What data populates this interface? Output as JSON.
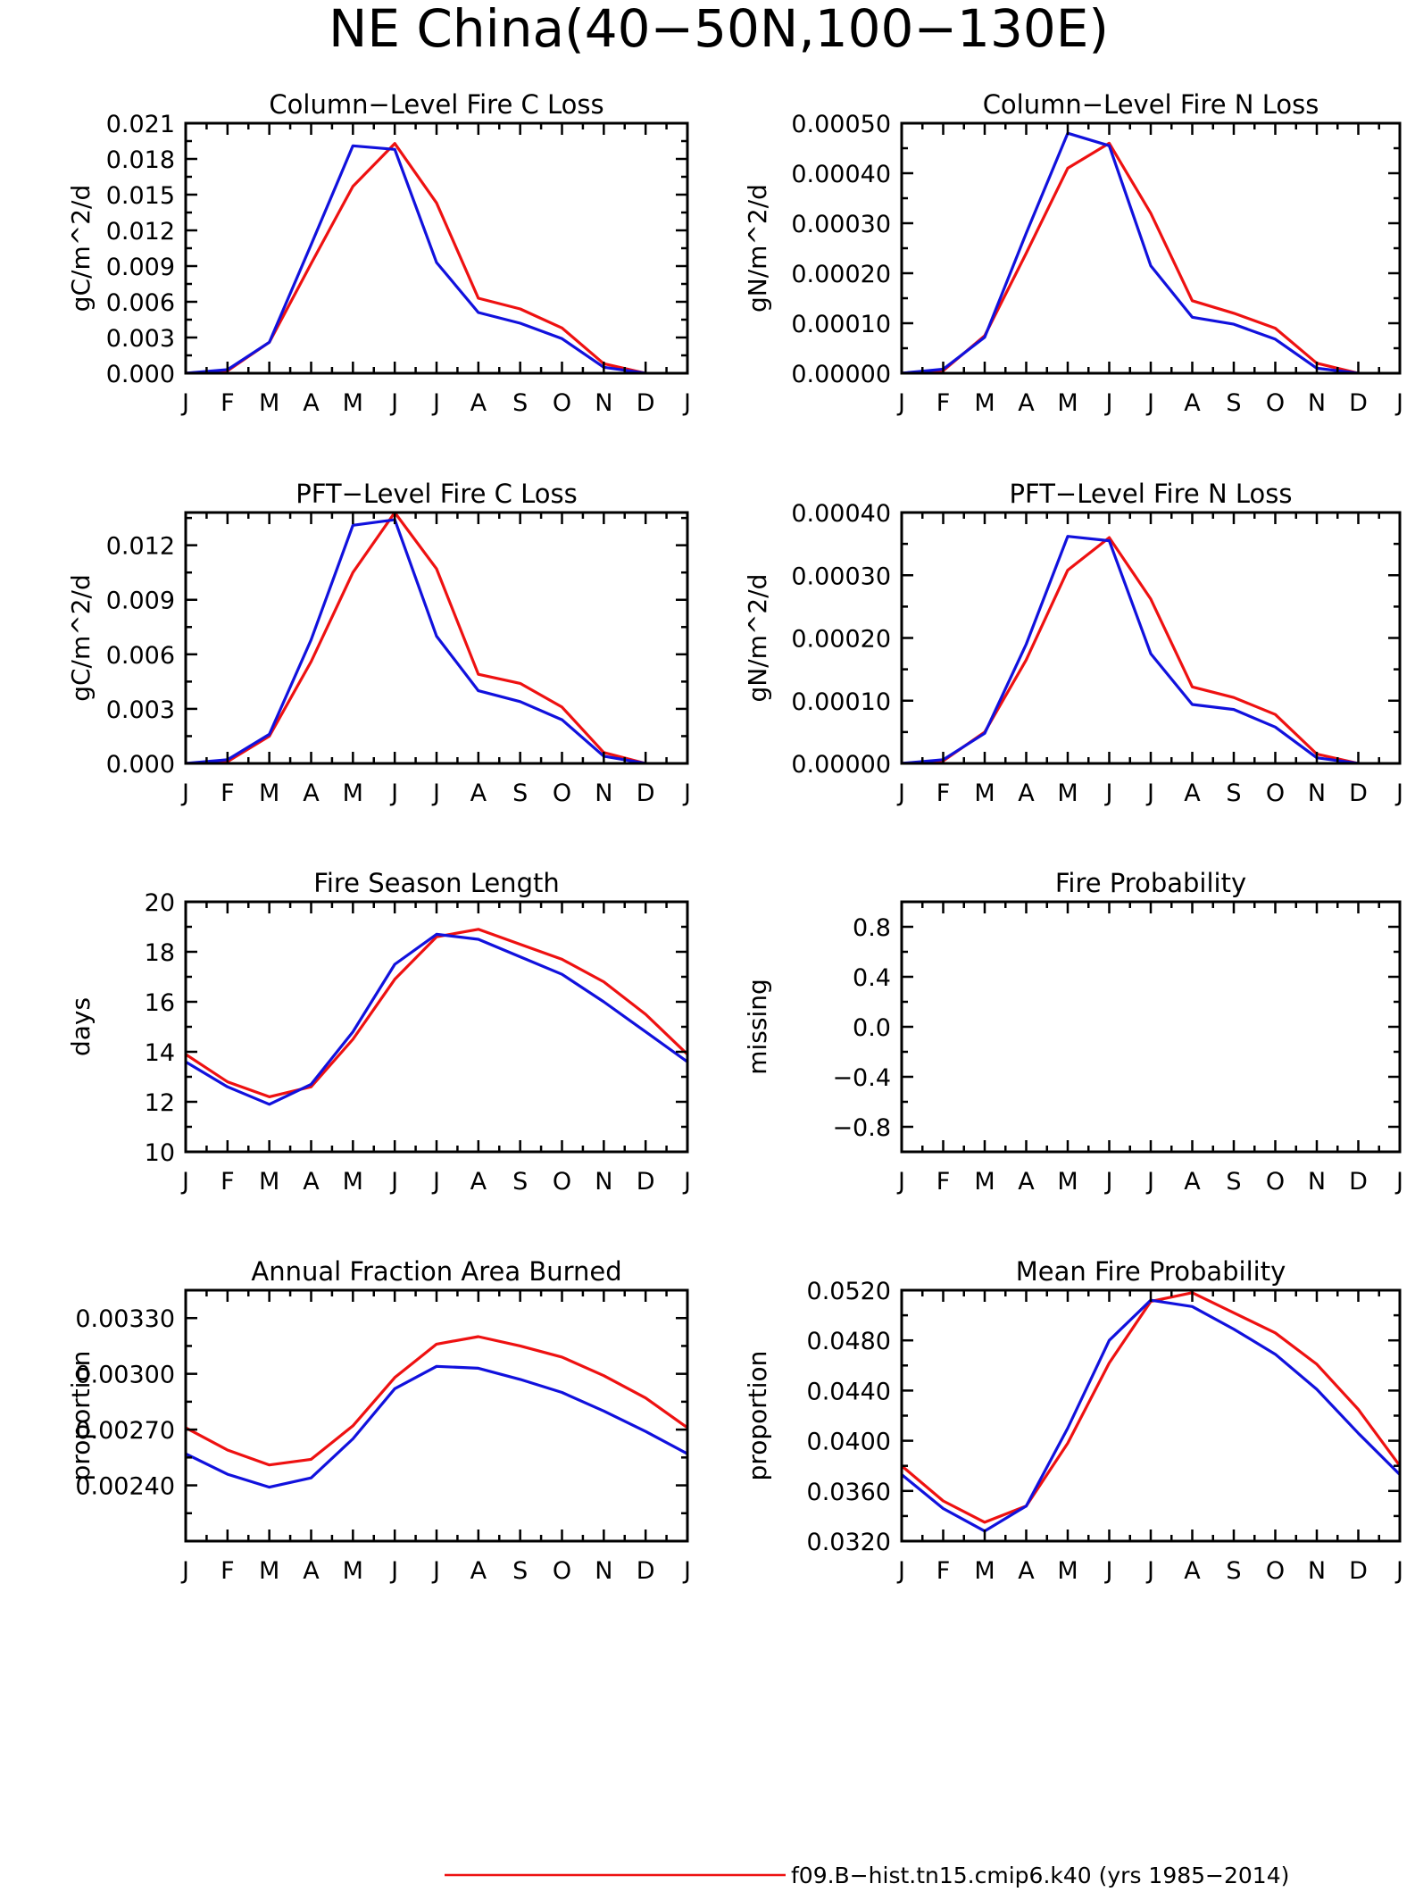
{
  "page": {
    "title": "NE China(40−50N,100−130E)"
  },
  "colors": {
    "series_1": "#ee1111",
    "series_2": "#1111dd",
    "frame": "#000000"
  },
  "legend": {
    "entries": [
      {
        "label": "f09.B−hist.tn15.cmip6.k40 (yrs 1985−2014)",
        "color": "#ee1111"
      }
    ]
  },
  "chart_data": [
    {
      "type": "line",
      "title": "Column−Level Fire C Loss",
      "xlabel": "",
      "ylabel": "gC/m^2/d",
      "categories": [
        "J",
        "F",
        "M",
        "A",
        "M",
        "J",
        "J",
        "A",
        "S",
        "O",
        "N",
        "D",
        "J"
      ],
      "ylim": [
        0,
        0.021
      ],
      "yticks": [
        "0.000",
        "0.003",
        "0.006",
        "0.009",
        "0.012",
        "0.015",
        "0.018",
        "0.021"
      ],
      "ytick_values": [
        0,
        0.003,
        0.006,
        0.009,
        0.012,
        0.015,
        0.018,
        0.021
      ],
      "series": [
        {
          "color": "#ee1111",
          "values": [
            0,
            0.0002,
            0.0026,
            0.0092,
            0.0157,
            0.0193,
            0.0143,
            0.0063,
            0.0054,
            0.0038,
            0.0008,
            0,
            null
          ]
        },
        {
          "color": "#1111dd",
          "values": [
            0,
            0.0003,
            0.0026,
            0.0108,
            0.0191,
            0.0188,
            0.0093,
            0.0051,
            0.0042,
            0.0029,
            0.0005,
            0,
            null
          ]
        }
      ]
    },
    {
      "type": "line",
      "title": "Column−Level Fire N Loss",
      "xlabel": "",
      "ylabel": "gN/m^2/d",
      "categories": [
        "J",
        "F",
        "M",
        "A",
        "M",
        "J",
        "J",
        "A",
        "S",
        "O",
        "N",
        "D",
        "J"
      ],
      "ylim": [
        0,
        0.0005
      ],
      "yticks": [
        "0.00000",
        "0.00010",
        "0.00020",
        "0.00030",
        "0.00040",
        "0.00050"
      ],
      "ytick_values": [
        0,
        0.0001,
        0.0002,
        0.0003,
        0.0004,
        0.0005
      ],
      "series": [
        {
          "color": "#ee1111",
          "values": [
            0,
            5e-06,
            7.5e-05,
            0.00024,
            0.00041,
            0.00046,
            0.00032,
            0.000145,
            0.00012,
            9e-05,
            2e-05,
            0,
            null
          ]
        },
        {
          "color": "#1111dd",
          "values": [
            0,
            8e-06,
            7.2e-05,
            0.00028,
            0.00048,
            0.000455,
            0.000215,
            0.000112,
            9.8e-05,
            6.8e-05,
            1e-05,
            0,
            null
          ]
        }
      ]
    },
    {
      "type": "line",
      "title": "PFT−Level Fire C Loss",
      "xlabel": "",
      "ylabel": "gC/m^2/d",
      "categories": [
        "J",
        "F",
        "M",
        "A",
        "M",
        "J",
        "J",
        "A",
        "S",
        "O",
        "N",
        "D",
        "J"
      ],
      "ylim": [
        0,
        0.0138
      ],
      "yticks": [
        "0.000",
        "0.003",
        "0.006",
        "0.009",
        "0.012"
      ],
      "ytick_values": [
        0,
        0.003,
        0.006,
        0.009,
        0.012
      ],
      "series": [
        {
          "color": "#ee1111",
          "values": [
            0,
            0.0001,
            0.0015,
            0.0056,
            0.0105,
            0.0138,
            0.0107,
            0.0049,
            0.0044,
            0.0031,
            0.0006,
            0,
            null
          ]
        },
        {
          "color": "#1111dd",
          "values": [
            0,
            0.0002,
            0.0016,
            0.0068,
            0.0131,
            0.0134,
            0.007,
            0.004,
            0.0034,
            0.0024,
            0.0004,
            0,
            null
          ]
        }
      ]
    },
    {
      "type": "line",
      "title": "PFT−Level Fire N Loss",
      "xlabel": "",
      "ylabel": "gN/m^2/d",
      "categories": [
        "J",
        "F",
        "M",
        "A",
        "M",
        "J",
        "J",
        "A",
        "S",
        "O",
        "N",
        "D",
        "J"
      ],
      "ylim": [
        0,
        0.0004
      ],
      "yticks": [
        "0.00000",
        "0.00010",
        "0.00020",
        "0.00030",
        "0.00040"
      ],
      "ytick_values": [
        0,
        0.0001,
        0.0002,
        0.0003,
        0.0004
      ],
      "series": [
        {
          "color": "#ee1111",
          "values": [
            0,
            4e-06,
            5e-05,
            0.000165,
            0.000308,
            0.00036,
            0.000262,
            0.000122,
            0.000105,
            7.8e-05,
            1.5e-05,
            0,
            null
          ]
        },
        {
          "color": "#1111dd",
          "values": [
            0,
            6e-06,
            4.8e-05,
            0.00019,
            0.000362,
            0.000355,
            0.000175,
            9.4e-05,
            8.6e-05,
            5.8e-05,
            9e-06,
            0,
            null
          ]
        }
      ]
    },
    {
      "type": "line",
      "title": "Fire Season Length",
      "xlabel": "",
      "ylabel": "days",
      "categories": [
        "J",
        "F",
        "M",
        "A",
        "M",
        "J",
        "J",
        "A",
        "S",
        "O",
        "N",
        "D",
        "J"
      ],
      "ylim": [
        10,
        20
      ],
      "yticks": [
        "10",
        "12",
        "14",
        "16",
        "18",
        "20"
      ],
      "ytick_values": [
        10,
        12,
        14,
        16,
        18,
        20
      ],
      "series": [
        {
          "color": "#ee1111",
          "values": [
            13.9,
            12.8,
            12.2,
            12.6,
            14.5,
            16.9,
            18.6,
            18.9,
            18.3,
            17.7,
            16.8,
            15.5,
            13.9
          ]
        },
        {
          "color": "#1111dd",
          "values": [
            13.6,
            12.6,
            11.9,
            12.7,
            14.8,
            17.5,
            18.7,
            18.5,
            17.8,
            17.1,
            16.0,
            14.8,
            13.6
          ]
        }
      ]
    },
    {
      "type": "line",
      "title": "Fire Probability",
      "xlabel": "",
      "ylabel": "missing",
      "categories": [
        "J",
        "F",
        "M",
        "A",
        "M",
        "J",
        "J",
        "A",
        "S",
        "O",
        "N",
        "D",
        "J"
      ],
      "ylim": [
        -1,
        1
      ],
      "yticks": [
        "−0.8",
        "−0.4",
        "0.0",
        "0.4",
        "0.8"
      ],
      "ytick_values": [
        -0.8,
        -0.4,
        0,
        0.4,
        0.8
      ],
      "series": []
    },
    {
      "type": "line",
      "title": "Annual Fraction Area Burned",
      "xlabel": "",
      "ylabel": "proportion",
      "categories": [
        "J",
        "F",
        "M",
        "A",
        "M",
        "J",
        "J",
        "A",
        "S",
        "O",
        "N",
        "D",
        "J"
      ],
      "ylim": [
        0.0021,
        0.00345
      ],
      "yticks": [
        "0.00240",
        "0.00270",
        "0.00300",
        "0.00330"
      ],
      "ytick_values": [
        0.0024,
        0.0027,
        0.003,
        0.0033
      ],
      "series": [
        {
          "color": "#ee1111",
          "values": [
            0.00271,
            0.00259,
            0.00251,
            0.00254,
            0.00272,
            0.00298,
            0.00316,
            0.0032,
            0.00315,
            0.00309,
            0.00299,
            0.00287,
            0.00271
          ]
        },
        {
          "color": "#1111dd",
          "values": [
            0.00257,
            0.00246,
            0.00239,
            0.00244,
            0.00265,
            0.00292,
            0.00304,
            0.00303,
            0.00297,
            0.0029,
            0.0028,
            0.00269,
            0.00257
          ]
        }
      ]
    },
    {
      "type": "line",
      "title": "Mean Fire Probability",
      "xlabel": "",
      "ylabel": "proportion",
      "categories": [
        "J",
        "F",
        "M",
        "A",
        "M",
        "J",
        "J",
        "A",
        "S",
        "O",
        "N",
        "D",
        "J"
      ],
      "ylim": [
        0.032,
        0.052
      ],
      "yticks": [
        "0.0320",
        "0.0360",
        "0.0400",
        "0.0440",
        "0.0480",
        "0.0520"
      ],
      "ytick_values": [
        0.032,
        0.036,
        0.04,
        0.044,
        0.048,
        0.052
      ],
      "series": [
        {
          "color": "#ee1111",
          "values": [
            0.038,
            0.0352,
            0.0335,
            0.0348,
            0.0398,
            0.0462,
            0.0511,
            0.0518,
            0.0502,
            0.0486,
            0.0461,
            0.0425,
            0.038
          ]
        },
        {
          "color": "#1111dd",
          "values": [
            0.0373,
            0.0346,
            0.0328,
            0.0348,
            0.041,
            0.048,
            0.0512,
            0.0507,
            0.0489,
            0.0469,
            0.0441,
            0.0406,
            0.0373
          ]
        }
      ]
    }
  ]
}
